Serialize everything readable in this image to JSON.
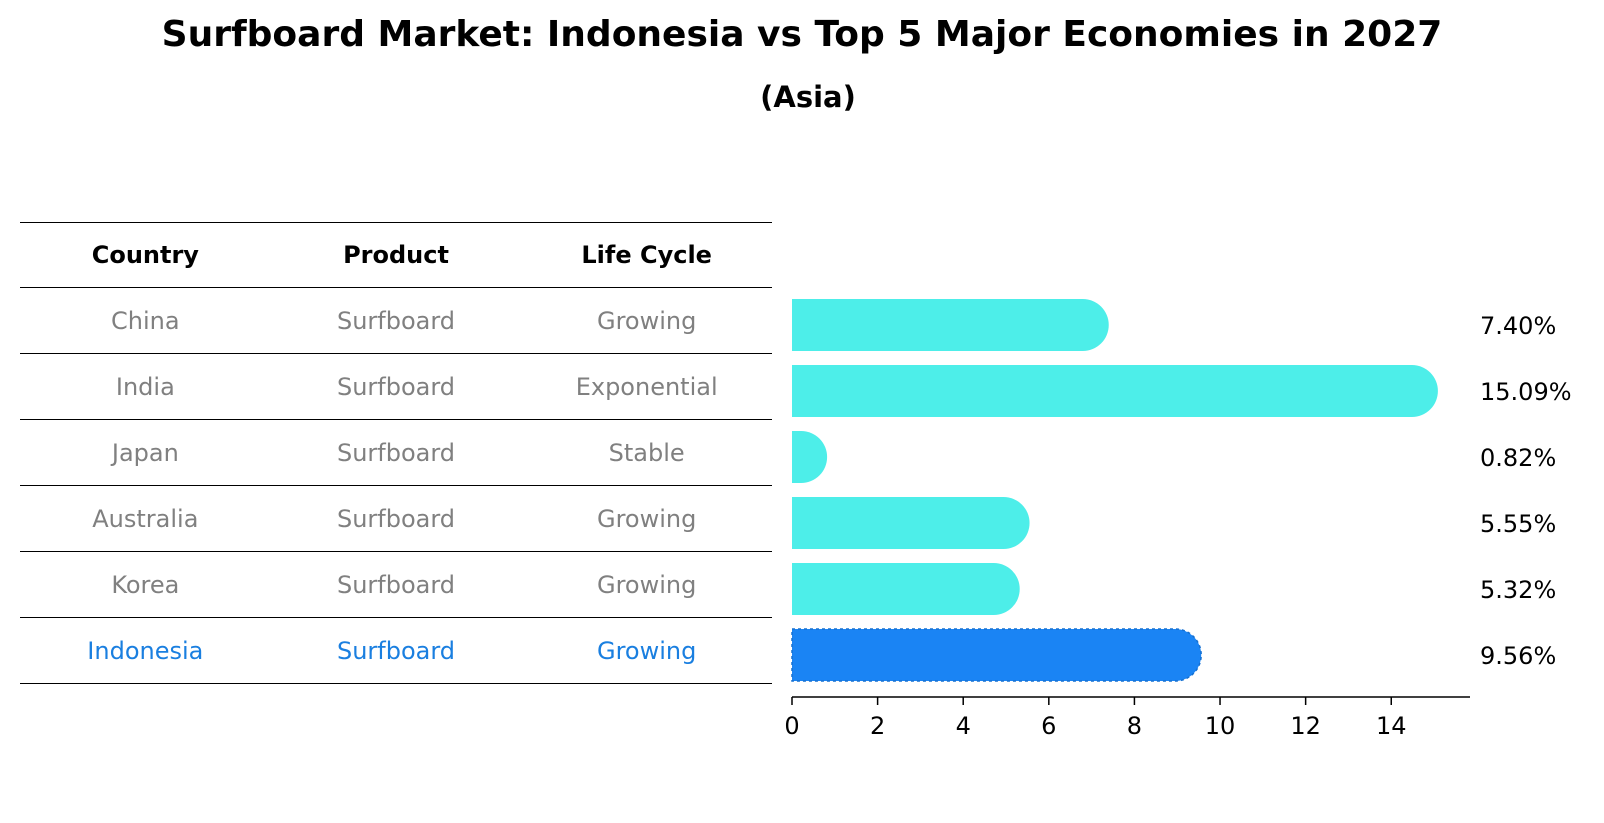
{
  "title": "Surfboard Market: Indonesia vs Top 5 Major Economies in 2027",
  "subtitle": "(Asia)",
  "table": {
    "headers": [
      "Country",
      "Product",
      "Life Cycle"
    ],
    "rows": [
      {
        "country": "China",
        "product": "Surfboard",
        "life_cycle": "Growing",
        "highlight": false
      },
      {
        "country": "India",
        "product": "Surfboard",
        "life_cycle": "Exponential",
        "highlight": false
      },
      {
        "country": "Japan",
        "product": "Surfboard",
        "life_cycle": "Stable",
        "highlight": false
      },
      {
        "country": "Australia",
        "product": "Surfboard",
        "life_cycle": "Growing",
        "highlight": false
      },
      {
        "country": "Korea",
        "product": "Surfboard",
        "life_cycle": "Growing",
        "highlight": false
      },
      {
        "country": "Indonesia",
        "product": "Surfboard",
        "life_cycle": "Growing",
        "highlight": true
      }
    ]
  },
  "chart_data": {
    "type": "bar",
    "orientation": "horizontal",
    "categories": [
      "China",
      "India",
      "Japan",
      "Australia",
      "Korea",
      "Indonesia"
    ],
    "values": [
      7.4,
      15.09,
      0.82,
      5.55,
      5.32,
      9.56
    ],
    "value_labels": [
      "7.40%",
      "15.09%",
      "0.82%",
      "5.55%",
      "5.32%",
      "9.56%"
    ],
    "highlight_index": 5,
    "xlim": [
      0,
      15.84
    ],
    "xticks": [
      0,
      2,
      4,
      6,
      8,
      10,
      12,
      14
    ],
    "xtick_labels": [
      "0",
      "2",
      "4",
      "6",
      "8",
      "10",
      "12",
      "14"
    ],
    "title": "Surfboard Market: Indonesia vs Top 5 Major Economies in 2027",
    "xlabel": "",
    "ylabel": ""
  },
  "colors": {
    "bar": "#4deee9",
    "highlight_bar": "#1a84f4",
    "highlight_text": "#1a7fe0",
    "muted_text": "#808080"
  }
}
